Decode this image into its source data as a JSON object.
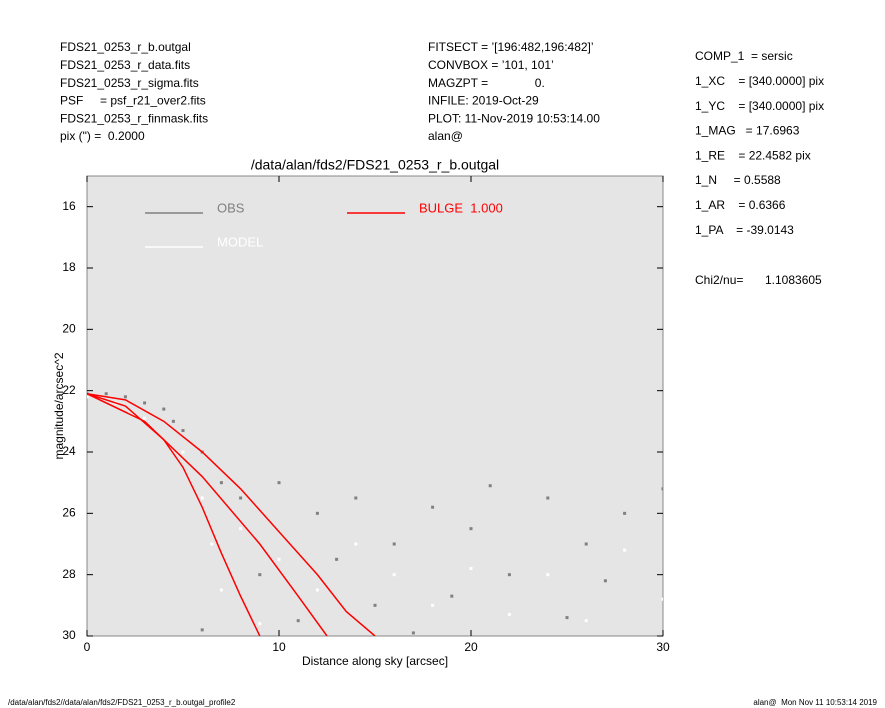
{
  "chart_data": {
    "type": "scatter",
    "title": "/data/alan/fds2/FDS21_0253_r_b.outgal",
    "x_label": "Distance along sky [arcsec]",
    "y_label": "magnitude/arcsec^2",
    "info_left": [
      "FDS21_0253_r_b.outgal",
      "FDS21_0253_r_data.fits",
      "FDS21_0253_r_sigma.fits",
      "PSF     = psf_r21_over2.fits",
      "FDS21_0253_r_finmask.fits",
      "pix (\") =  0.2000"
    ],
    "info_middle": [
      "FITSECT = ’[196:482,196:482]’",
      "CONVBOX = ’101, 101’",
      "MAGZPT =              0.",
      "INFILE: 2019-Oct-29",
      "PLOT: 11-Nov-2019 10:53:14.00",
      "alan@"
    ],
    "info_right": [
      "COMP_1  = sersic",
      "1_XC    = [340.0000] pix",
      "1_YC    = [340.0000] pix",
      "1_MAG   = 17.6963",
      "1_RE    = 22.4582 pix",
      "1_N     = 0.5588",
      "1_AR    = 0.6366",
      "1_PA    = -39.0143"
    ],
    "chi2_label": "Chi2/nu=",
    "chi2_value": "1.1083605",
    "footer_left": "/data/alan/fds2//data/alan/fds2/FDS21_0253_r_b.outgal_profile2",
    "footer_right": "alan@  Mon Nov 11 10:53:14 2019",
    "xlim": [
      0,
      30
    ],
    "xticks": [
      0,
      10,
      20,
      30
    ],
    "ylim": [
      15,
      30
    ],
    "yticks": [
      16,
      18,
      20,
      22,
      24,
      26,
      28,
      30
    ],
    "y_inverted": true,
    "series": [
      {
        "name": "OBS",
        "color": "#808080",
        "style": "points",
        "x": [
          0,
          1,
          2,
          3,
          4,
          4.5,
          5,
          6,
          7,
          8,
          10,
          12,
          14,
          16,
          18,
          20,
          22,
          24,
          26,
          28,
          30,
          9,
          11,
          15,
          19,
          25,
          6,
          13,
          27,
          21,
          17
        ],
        "values": [
          22.1,
          22.1,
          22.2,
          22.4,
          22.6,
          23,
          23.3,
          24,
          25,
          25.5,
          25,
          26,
          25.5,
          27,
          25.8,
          26.5,
          28,
          25.5,
          27,
          26,
          25.2,
          28,
          29.5,
          29,
          28.7,
          29.4,
          29.8,
          27.5,
          28.2,
          25.1,
          29.9
        ]
      },
      {
        "name": "MODEL",
        "color": "#ffffff",
        "style": "points",
        "x": [
          0,
          1.5,
          3,
          5,
          6,
          6.5,
          7,
          8,
          10,
          12,
          14,
          16,
          18,
          20,
          22,
          24,
          26,
          28,
          30,
          9
        ],
        "values": [
          22.2,
          22.4,
          22.9,
          24,
          25.5,
          27,
          28.5,
          26.5,
          27.5,
          28.5,
          27,
          28,
          29,
          27.8,
          29.3,
          28,
          29.5,
          27.2,
          28.8,
          29.6
        ]
      },
      {
        "name": "BULGE  1.000",
        "color": "#ff0000",
        "style": "line",
        "x": [
          0,
          2,
          4,
          6,
          8,
          10,
          12,
          13.5,
          15,
          null,
          0,
          2,
          4,
          5,
          6,
          7,
          8,
          9,
          null,
          0,
          3,
          6,
          9,
          11,
          12.5
        ],
        "values": [
          22.1,
          22.3,
          23,
          24,
          25.2,
          26.6,
          28,
          29.2,
          30,
          null,
          22.1,
          22.5,
          23.6,
          24.5,
          25.8,
          27.3,
          28.7,
          30,
          null,
          22.1,
          23,
          24.8,
          27,
          28.7,
          30
        ]
      }
    ]
  }
}
